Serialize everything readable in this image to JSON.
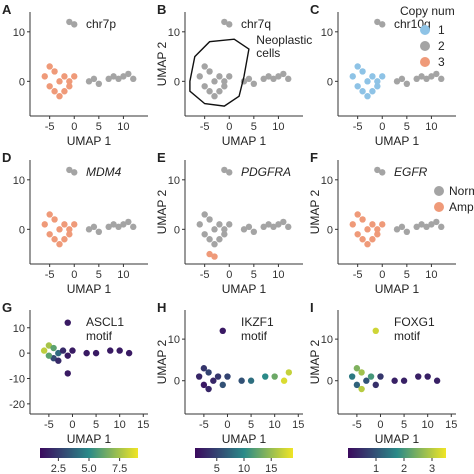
{
  "colors": {
    "cn1": "#8ec3e6",
    "cn2": "#a4a4a4",
    "cn3": "#ef9a79",
    "normal": "#a4a4a4",
    "amplified": "#ef9a79",
    "outline": "#111111",
    "motif_low": "#3b0a5e",
    "motif_mid": "#2a8a88",
    "motif_high": "#f0e525"
  },
  "legends": {
    "copy_number": {
      "title": "Copy num",
      "items": [
        "1",
        "2",
        "3"
      ]
    },
    "amplification": {
      "items": [
        "Norm",
        "Ampli"
      ]
    }
  },
  "chart_data": [
    {
      "type": "scatter",
      "panel": "A",
      "annotation": "chr7p",
      "xlabel": "UMAP 1",
      "ylabel": "",
      "xticks": [
        -5,
        0,
        5,
        10
      ],
      "yticks": [
        0,
        10
      ],
      "xlim": [
        -9,
        15
      ],
      "ylim": [
        -7,
        14
      ],
      "color_mode": "copy_number",
      "outline": false,
      "series": [
        {
          "name": "1",
          "values": []
        },
        {
          "name": "2",
          "values": [
            [
              -1,
              12
            ],
            [
              0,
              11.5
            ],
            [
              3,
              0
            ],
            [
              4,
              0.5
            ],
            [
              5,
              -0.5
            ],
            [
              7,
              0.5
            ],
            [
              8,
              1
            ],
            [
              9,
              0.5
            ],
            [
              10,
              1
            ],
            [
              11,
              1.5
            ],
            [
              12,
              0.5
            ]
          ]
        },
        {
          "name": "3",
          "values": [
            [
              -6,
              1
            ],
            [
              -5,
              3
            ],
            [
              -4,
              2
            ],
            [
              -3,
              0
            ],
            [
              -2,
              1
            ],
            [
              -1,
              -1
            ],
            [
              -4,
              -2
            ],
            [
              -5,
              -1
            ],
            [
              -3,
              -3
            ],
            [
              -2,
              -2
            ],
            [
              -1,
              0
            ],
            [
              0,
              1
            ]
          ]
        }
      ]
    },
    {
      "type": "scatter",
      "panel": "B",
      "annotation": "chr7q",
      "region_label": "Neoplastic cells",
      "xlabel": "UMAP 1",
      "ylabel": "UMAP 2",
      "xticks": [
        -5,
        0,
        5,
        10
      ],
      "yticks": [
        0,
        10
      ],
      "xlim": [
        -9,
        15
      ],
      "ylim": [
        -7,
        14
      ],
      "color_mode": "copy_number",
      "outline": true,
      "series": [
        {
          "name": "1",
          "values": []
        },
        {
          "name": "2",
          "values": [
            [
              -1,
              12
            ],
            [
              0,
              11.5
            ],
            [
              3,
              0
            ],
            [
              4,
              0.5
            ],
            [
              5,
              -0.5
            ],
            [
              7,
              0.5
            ],
            [
              8,
              1
            ],
            [
              9,
              0.5
            ],
            [
              10,
              1
            ],
            [
              11,
              1.5
            ],
            [
              12,
              0.5
            ],
            [
              -6,
              1
            ],
            [
              -5,
              3
            ],
            [
              -4,
              2
            ],
            [
              -3,
              0
            ],
            [
              -2,
              1
            ],
            [
              -1,
              -1
            ],
            [
              -4,
              -2
            ],
            [
              -5,
              -1
            ],
            [
              -3,
              -3
            ],
            [
              -2,
              -2
            ],
            [
              -1,
              0
            ],
            [
              0,
              1
            ]
          ]
        },
        {
          "name": "3",
          "values": []
        }
      ]
    },
    {
      "type": "scatter",
      "panel": "C",
      "annotation": "chr10q",
      "xlabel": "UMAP 1",
      "ylabel": "",
      "xticks": [
        -5,
        0,
        5,
        10
      ],
      "yticks": [
        0,
        10
      ],
      "xlim": [
        -9,
        15
      ],
      "ylim": [
        -7,
        14
      ],
      "color_mode": "copy_number",
      "outline": false,
      "series": [
        {
          "name": "1",
          "values": [
            [
              -6,
              1
            ],
            [
              -5,
              3
            ],
            [
              -4,
              2
            ],
            [
              -3,
              0
            ],
            [
              -2,
              1
            ],
            [
              -1,
              -1
            ],
            [
              -4,
              -2
            ],
            [
              -5,
              -1
            ],
            [
              -3,
              -3
            ],
            [
              -2,
              -2
            ],
            [
              -1,
              0
            ],
            [
              0,
              1
            ]
          ]
        },
        {
          "name": "2",
          "values": [
            [
              -1,
              12
            ],
            [
              0,
              11.5
            ],
            [
              3,
              0
            ],
            [
              4,
              0.5
            ],
            [
              5,
              -0.5
            ],
            [
              7,
              0.5
            ],
            [
              8,
              1
            ],
            [
              9,
              0.5
            ],
            [
              10,
              1
            ],
            [
              11,
              1.5
            ],
            [
              12,
              0.5
            ]
          ]
        },
        {
          "name": "3",
          "values": []
        }
      ]
    },
    {
      "type": "scatter",
      "panel": "D",
      "annotation": "MDM4",
      "xlabel": "UMAP 1",
      "ylabel": "",
      "xticks": [
        -5,
        0,
        5,
        10
      ],
      "yticks": [
        0,
        10
      ],
      "xlim": [
        -9,
        15
      ],
      "ylim": [
        -7,
        14
      ],
      "color_mode": "amplification",
      "outline": false,
      "series": [
        {
          "name": "Norm",
          "values": [
            [
              -1,
              12
            ],
            [
              0,
              11.5
            ],
            [
              3,
              0
            ],
            [
              4,
              0.5
            ],
            [
              5,
              -0.5
            ],
            [
              7,
              0.5
            ],
            [
              8,
              1
            ],
            [
              9,
              0.5
            ],
            [
              10,
              1
            ],
            [
              11,
              1.5
            ],
            [
              12,
              0.5
            ]
          ]
        },
        {
          "name": "Ampli",
          "values": [
            [
              -6,
              1
            ],
            [
              -5,
              3
            ],
            [
              -4,
              2
            ],
            [
              -3,
              0
            ],
            [
              -2,
              1
            ],
            [
              -1,
              -1
            ],
            [
              -4,
              -2
            ],
            [
              -5,
              -1
            ],
            [
              -3,
              -3
            ],
            [
              -2,
              -2
            ],
            [
              -1,
              0
            ],
            [
              0,
              1
            ]
          ]
        }
      ]
    },
    {
      "type": "scatter",
      "panel": "E",
      "annotation": "PDGFRA",
      "xlabel": "UMAP 1",
      "ylabel": "UMAP 2",
      "xticks": [
        -5,
        0,
        5,
        10
      ],
      "yticks": [
        0,
        10
      ],
      "xlim": [
        -9,
        15
      ],
      "ylim": [
        -7,
        14
      ],
      "color_mode": "amplification",
      "outline": false,
      "series": [
        {
          "name": "Norm",
          "values": [
            [
              -1,
              12
            ],
            [
              0,
              11.5
            ],
            [
              3,
              0
            ],
            [
              4,
              0.5
            ],
            [
              5,
              -0.5
            ],
            [
              7,
              0.5
            ],
            [
              8,
              1
            ],
            [
              9,
              0.5
            ],
            [
              10,
              1
            ],
            [
              11,
              1.5
            ],
            [
              12,
              0.5
            ],
            [
              -6,
              1
            ],
            [
              -5,
              3
            ],
            [
              -4,
              2
            ],
            [
              -3,
              0
            ],
            [
              -2,
              1
            ],
            [
              -1,
              -1
            ],
            [
              -4,
              -2
            ],
            [
              -5,
              -1
            ],
            [
              -3,
              -3
            ],
            [
              -2,
              -2
            ],
            [
              -1,
              0
            ],
            [
              0,
              1
            ]
          ]
        },
        {
          "name": "Ampli",
          "values": [
            [
              -4,
              -5
            ],
            [
              -3,
              -5.5
            ]
          ]
        }
      ]
    },
    {
      "type": "scatter",
      "panel": "F",
      "annotation": "EGFR",
      "xlabel": "UMAP 1",
      "ylabel": "UMAP 2",
      "xticks": [
        -5,
        0,
        5,
        10
      ],
      "yticks": [
        0,
        10
      ],
      "xlim": [
        -9,
        15
      ],
      "ylim": [
        -7,
        14
      ],
      "color_mode": "amplification",
      "outline": false,
      "series": [
        {
          "name": "Norm",
          "values": [
            [
              -1,
              12
            ],
            [
              0,
              11.5
            ],
            [
              3,
              0
            ],
            [
              4,
              0.5
            ],
            [
              5,
              -0.5
            ],
            [
              7,
              0.5
            ],
            [
              8,
              1
            ],
            [
              9,
              0.5
            ],
            [
              10,
              1
            ],
            [
              11,
              1.5
            ],
            [
              12,
              0.5
            ]
          ]
        },
        {
          "name": "Ampli",
          "values": [
            [
              -6,
              1
            ],
            [
              -5,
              3
            ],
            [
              -4,
              2
            ],
            [
              -3,
              0
            ],
            [
              -2,
              1
            ],
            [
              -1,
              -1
            ],
            [
              -4,
              -2
            ],
            [
              -5,
              -1
            ],
            [
              -3,
              -3
            ],
            [
              -2,
              -2
            ],
            [
              -1,
              0
            ],
            [
              0,
              1
            ]
          ]
        }
      ]
    },
    {
      "type": "scatter",
      "panel": "G",
      "annotation": "ASCL1 motif",
      "xlabel": "UMAP 1",
      "ylabel": "",
      "xticks": [
        -5,
        0,
        5,
        10,
        15
      ],
      "yticks": [
        -20,
        -10,
        0,
        10
      ],
      "xlim": [
        -9,
        16
      ],
      "ylim": [
        -24,
        17
      ],
      "color_mode": "motif",
      "colorbar": {
        "ticks": [
          "2.5",
          "5.0",
          "7.5"
        ],
        "min": 1,
        "max": 9,
        "tick_values": [
          2.5,
          5.0,
          7.5
        ]
      },
      "points": [
        [
          -1,
          12,
          1.5
        ],
        [
          -6,
          1,
          8
        ],
        [
          -5,
          3,
          7.5
        ],
        [
          -4,
          2,
          6
        ],
        [
          -3,
          0,
          4
        ],
        [
          -2,
          1,
          2
        ],
        [
          -1,
          -1,
          1.5
        ],
        [
          -4,
          -2,
          3
        ],
        [
          -5,
          -1,
          6
        ],
        [
          -3,
          -3,
          2
        ],
        [
          0,
          1,
          1.5
        ],
        [
          3,
          0,
          1.5
        ],
        [
          5,
          0,
          1.5
        ],
        [
          8,
          1,
          1.5
        ],
        [
          10,
          1,
          1.5
        ],
        [
          12,
          0,
          1.5
        ],
        [
          -1,
          -8,
          1.5
        ]
      ]
    },
    {
      "type": "scatter",
      "panel": "H",
      "annotation": "IKZF1 motif",
      "xlabel": "UMAP 1",
      "ylabel": "UMAP 2",
      "xticks": [
        -5,
        0,
        5,
        10,
        15
      ],
      "yticks": [
        0,
        10
      ],
      "xlim": [
        -9,
        16
      ],
      "ylim": [
        -8,
        17
      ],
      "color_mode": "motif",
      "colorbar": {
        "ticks": [
          "5",
          "10",
          "15"
        ],
        "min": 1,
        "max": 19,
        "tick_values": [
          5,
          10,
          15
        ]
      },
      "points": [
        [
          -1,
          12,
          2
        ],
        [
          -6,
          1,
          3
        ],
        [
          -5,
          3,
          4
        ],
        [
          -4,
          2,
          5
        ],
        [
          -3,
          0,
          3
        ],
        [
          -2,
          1,
          4
        ],
        [
          -1,
          -1,
          6
        ],
        [
          -4,
          -2,
          3
        ],
        [
          -5,
          -1,
          2
        ],
        [
          0,
          1,
          5
        ],
        [
          3,
          0,
          6
        ],
        [
          5,
          0,
          8
        ],
        [
          8,
          1,
          10
        ],
        [
          10,
          1,
          13
        ],
        [
          12,
          0,
          18
        ],
        [
          13,
          2,
          17
        ]
      ]
    },
    {
      "type": "scatter",
      "panel": "I",
      "annotation": "FOXG1 motif",
      "xlabel": "UMAP 1",
      "ylabel": "UMAP 2",
      "xticks": [
        -5,
        0,
        5,
        10,
        15
      ],
      "yticks": [
        0,
        10
      ],
      "xlim": [
        -9,
        16
      ],
      "ylim": [
        -8,
        17
      ],
      "color_mode": "motif",
      "colorbar": {
        "ticks": [
          "1",
          "2",
          "3"
        ],
        "min": 0,
        "max": 3.5,
        "tick_values": [
          1,
          2,
          3
        ]
      },
      "points": [
        [
          -1,
          12,
          3.2
        ],
        [
          -6,
          1,
          1.5
        ],
        [
          -5,
          3,
          2.5
        ],
        [
          -4,
          2,
          2.8
        ],
        [
          -3,
          0,
          1
        ],
        [
          -2,
          1,
          2
        ],
        [
          -1,
          -1,
          0.5
        ],
        [
          -4,
          -2,
          3
        ],
        [
          -5,
          -1,
          1.2
        ],
        [
          0,
          1,
          0.6
        ],
        [
          3,
          0,
          0.3
        ],
        [
          5,
          0,
          0.3
        ],
        [
          8,
          1,
          0.3
        ],
        [
          10,
          1,
          0.3
        ],
        [
          12,
          0,
          0.3
        ]
      ]
    }
  ]
}
